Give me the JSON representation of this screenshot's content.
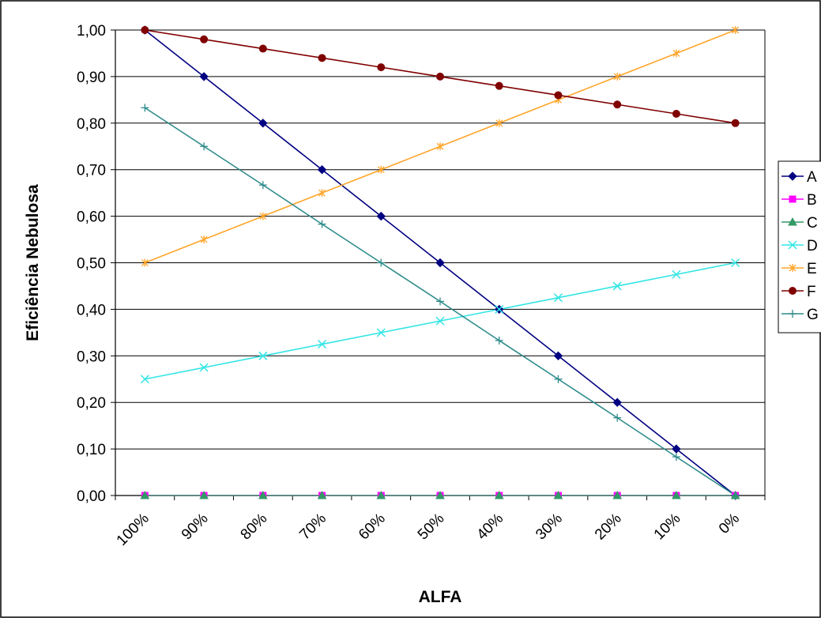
{
  "chart_data": {
    "type": "line",
    "title": "",
    "xlabel": "ALFA",
    "ylabel": "Eficiência Nebulosa",
    "ylim": [
      0,
      1
    ],
    "y_ticks": [
      "0,00",
      "0,10",
      "0,20",
      "0,30",
      "0,40",
      "0,50",
      "0,60",
      "0,70",
      "0,80",
      "0,90",
      "1,00"
    ],
    "categories": [
      "100%",
      "90%",
      "80%",
      "70%",
      "60%",
      "50%",
      "40%",
      "30%",
      "20%",
      "10%",
      "0%"
    ],
    "grid": "horizontal",
    "legend_position": "right",
    "series": [
      {
        "name": "A",
        "color": "#000080",
        "marker": "diamond",
        "values": [
          1.0,
          0.9,
          0.8,
          0.7,
          0.6,
          0.5,
          0.4,
          0.3,
          0.2,
          0.1,
          0.0
        ]
      },
      {
        "name": "B",
        "color": "#FF00FF",
        "marker": "square",
        "values": [
          0,
          0,
          0,
          0,
          0,
          0,
          0,
          0,
          0,
          0,
          0
        ]
      },
      {
        "name": "C",
        "color": "#339966",
        "marker": "triangle",
        "values": [
          0,
          0,
          0,
          0,
          0,
          0,
          0,
          0,
          0,
          0,
          0
        ]
      },
      {
        "name": "D",
        "color": "#33E5E5",
        "marker": "x",
        "values": [
          0.25,
          0.275,
          0.3,
          0.325,
          0.35,
          0.375,
          0.4,
          0.425,
          0.45,
          0.475,
          0.5
        ]
      },
      {
        "name": "E",
        "color": "#FFA52A",
        "marker": "asterisk",
        "values": [
          0.5,
          0.55,
          0.6,
          0.65,
          0.7,
          0.75,
          0.8,
          0.85,
          0.9,
          0.95,
          1.0
        ]
      },
      {
        "name": "F",
        "color": "#800000",
        "marker": "circle",
        "values": [
          1.0,
          0.98,
          0.96,
          0.94,
          0.92,
          0.9,
          0.88,
          0.86,
          0.84,
          0.82,
          0.8
        ]
      },
      {
        "name": "G",
        "color": "#2E8B8B",
        "marker": "plus",
        "values": [
          0.833,
          0.75,
          0.667,
          0.583,
          0.5,
          0.417,
          0.333,
          0.25,
          0.167,
          0.083,
          0.0
        ]
      }
    ]
  }
}
